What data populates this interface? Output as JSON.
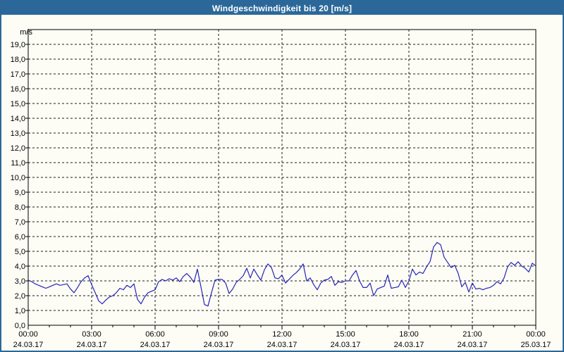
{
  "window": {
    "title": "Windgeschwindigkeit bis 20 [m/s]"
  },
  "colors": {
    "titlebar": "#2b6899",
    "window_border": "#2b6899",
    "background": "#fdfdf6",
    "plot_border": "#000000",
    "grid": "#1a1a1a",
    "tick": "#000000",
    "label_text": "#000000",
    "series_line": "#2424b8"
  },
  "chart_data": {
    "type": "line",
    "title": "Windgeschwindigkeit bis 20 [m/s]",
    "unit_label": "m/s",
    "ylim": [
      0,
      20
    ],
    "y_tick_step": 1.0,
    "y_tick_labels": [
      "0,0",
      "1,0",
      "2,0",
      "3,0",
      "4,0",
      "5,0",
      "6,0",
      "7,0",
      "8,0",
      "9,0",
      "10,0",
      "11,0",
      "12,0",
      "13,0",
      "14,0",
      "15,0",
      "16,0",
      "17,0",
      "18,0",
      "19,0"
    ],
    "grid": {
      "horizontal": "dashed, every 1.0 m/s",
      "vertical": "dashed, every 3 h"
    },
    "legend": "none",
    "x_axis": {
      "total_hours": 24,
      "minor_tick_interval_hours": 1,
      "major_tick_interval_hours": 3,
      "major_ticks": [
        {
          "hour": 0,
          "time": "00:00",
          "date": "24.03.17"
        },
        {
          "hour": 3,
          "time": "03:00",
          "date": "24.03.17"
        },
        {
          "hour": 6,
          "time": "06:00",
          "date": "24.03.17"
        },
        {
          "hour": 9,
          "time": "09:00",
          "date": "24.03.17"
        },
        {
          "hour": 12,
          "time": "12:00",
          "date": "24.03.17"
        },
        {
          "hour": 15,
          "time": "15:00",
          "date": "24.03.17"
        },
        {
          "hour": 18,
          "time": "18:00",
          "date": "24.03.17"
        },
        {
          "hour": 21,
          "time": "21:00",
          "date": "24.03.17"
        },
        {
          "hour": 24,
          "time": "00:00",
          "date": "25.03.17"
        }
      ]
    },
    "series": [
      {
        "name": "Windgeschwindigkeit",
        "unit": "m/s",
        "start_minutes": 0,
        "interval_minutes": 10,
        "values": [
          3.05,
          2.95,
          2.8,
          2.7,
          2.6,
          2.5,
          2.6,
          2.7,
          2.8,
          2.7,
          2.75,
          2.8,
          2.45,
          2.2,
          2.55,
          2.95,
          3.2,
          3.35,
          2.75,
          2.2,
          1.65,
          1.45,
          1.7,
          1.9,
          2.0,
          2.2,
          2.5,
          2.4,
          2.7,
          2.55,
          2.8,
          1.75,
          1.45,
          1.9,
          2.2,
          2.3,
          2.4,
          2.95,
          3.1,
          3.0,
          3.15,
          3.05,
          3.2,
          2.95,
          3.3,
          3.5,
          3.25,
          2.9,
          3.8,
          2.6,
          1.4,
          1.3,
          2.2,
          3.05,
          3.1,
          3.1,
          2.85,
          2.15,
          2.45,
          2.9,
          3.1,
          3.35,
          3.85,
          3.2,
          3.8,
          3.4,
          3.05,
          3.75,
          4.15,
          3.9,
          3.2,
          3.15,
          3.4,
          2.85,
          3.1,
          3.35,
          3.55,
          3.8,
          4.15,
          3.0,
          3.2,
          2.75,
          2.4,
          2.85,
          3.05,
          3.1,
          3.3,
          2.7,
          2.95,
          2.9,
          3.0,
          3.0,
          3.4,
          3.7,
          3.0,
          2.55,
          2.55,
          2.85,
          2.0,
          2.45,
          2.55,
          2.65,
          3.4,
          2.5,
          2.55,
          2.6,
          3.05,
          2.55,
          3.0,
          3.8,
          3.4,
          3.6,
          3.5,
          3.95,
          4.3,
          5.3,
          5.6,
          5.45,
          4.6,
          4.25,
          3.9,
          4.05,
          3.5,
          2.6,
          2.9,
          2.25,
          2.85,
          2.45,
          2.5,
          2.4,
          2.5,
          2.55,
          2.7,
          2.95,
          2.8,
          3.2,
          3.95,
          4.25,
          4.05,
          4.3,
          4.0,
          3.85,
          3.6,
          4.2,
          4.0
        ]
      }
    ]
  }
}
